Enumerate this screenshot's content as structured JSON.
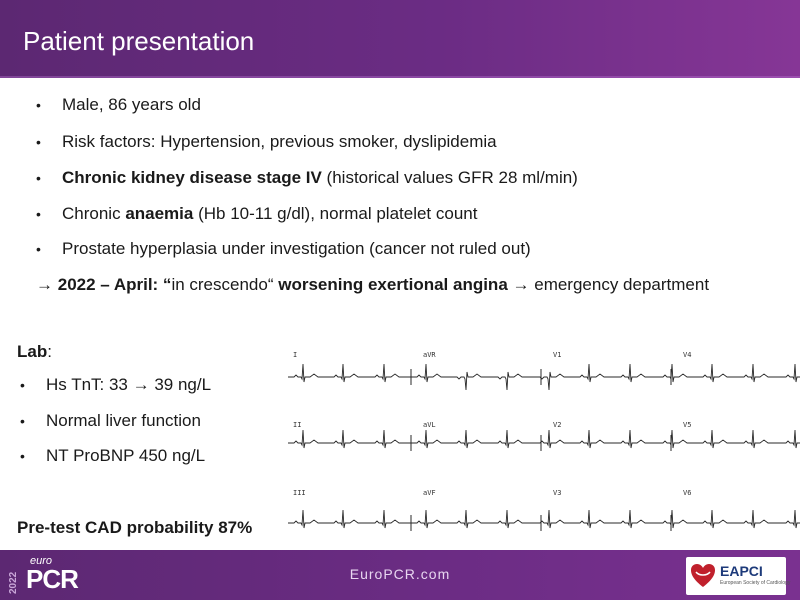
{
  "header": {
    "title": "Patient presentation"
  },
  "bullets": [
    {
      "plain": "Male, 86 years old"
    },
    {
      "plain": "Risk factors: Hypertension, previous smoker, dyslipidemia"
    },
    {
      "bold": "Chronic kidney disease stage IV",
      "rest": " (historical values GFR 28 ml/min)"
    },
    {
      "pre": "Chronic ",
      "bold": "anaemia",
      "rest": " (Hb 10-11 g/dl), normal platelet count"
    },
    {
      "plain": "Prostate hyperplasia under investigation (cancer not ruled out)"
    }
  ],
  "timeline": {
    "arrow": "→",
    "date": "2022 – April: “",
    "quote": "in crescendo“ ",
    "bold": "worsening exertional angina",
    "arrow2": "→",
    "rest": " emergency department"
  },
  "lab": {
    "title": "Lab",
    "colon": ":",
    "items": [
      {
        "label": "Hs TnT: 33 ",
        "arrow": "→",
        "rest": " 39 ng/L"
      },
      {
        "label": "Normal liver function"
      },
      {
        "label": "NT ProBNP 450 ng/L"
      }
    ]
  },
  "pretest": "Pre-test CAD probability 87%",
  "ecg": {
    "leads": [
      "I",
      "aVR",
      "V1",
      "V4",
      "II",
      "aVL",
      "V2",
      "V5",
      "III",
      "aVF",
      "V3",
      "V6"
    ]
  },
  "footer": {
    "site": "EuroPCR.com",
    "year": "2022",
    "brand_top": "euro",
    "brand": "PCR",
    "partner": "EAPCI",
    "partner_sub": "European Society of Cardiology"
  },
  "colors": {
    "header": "#6b2c84",
    "partner_text": "#1d3a7a",
    "heart": "#c0202c"
  }
}
